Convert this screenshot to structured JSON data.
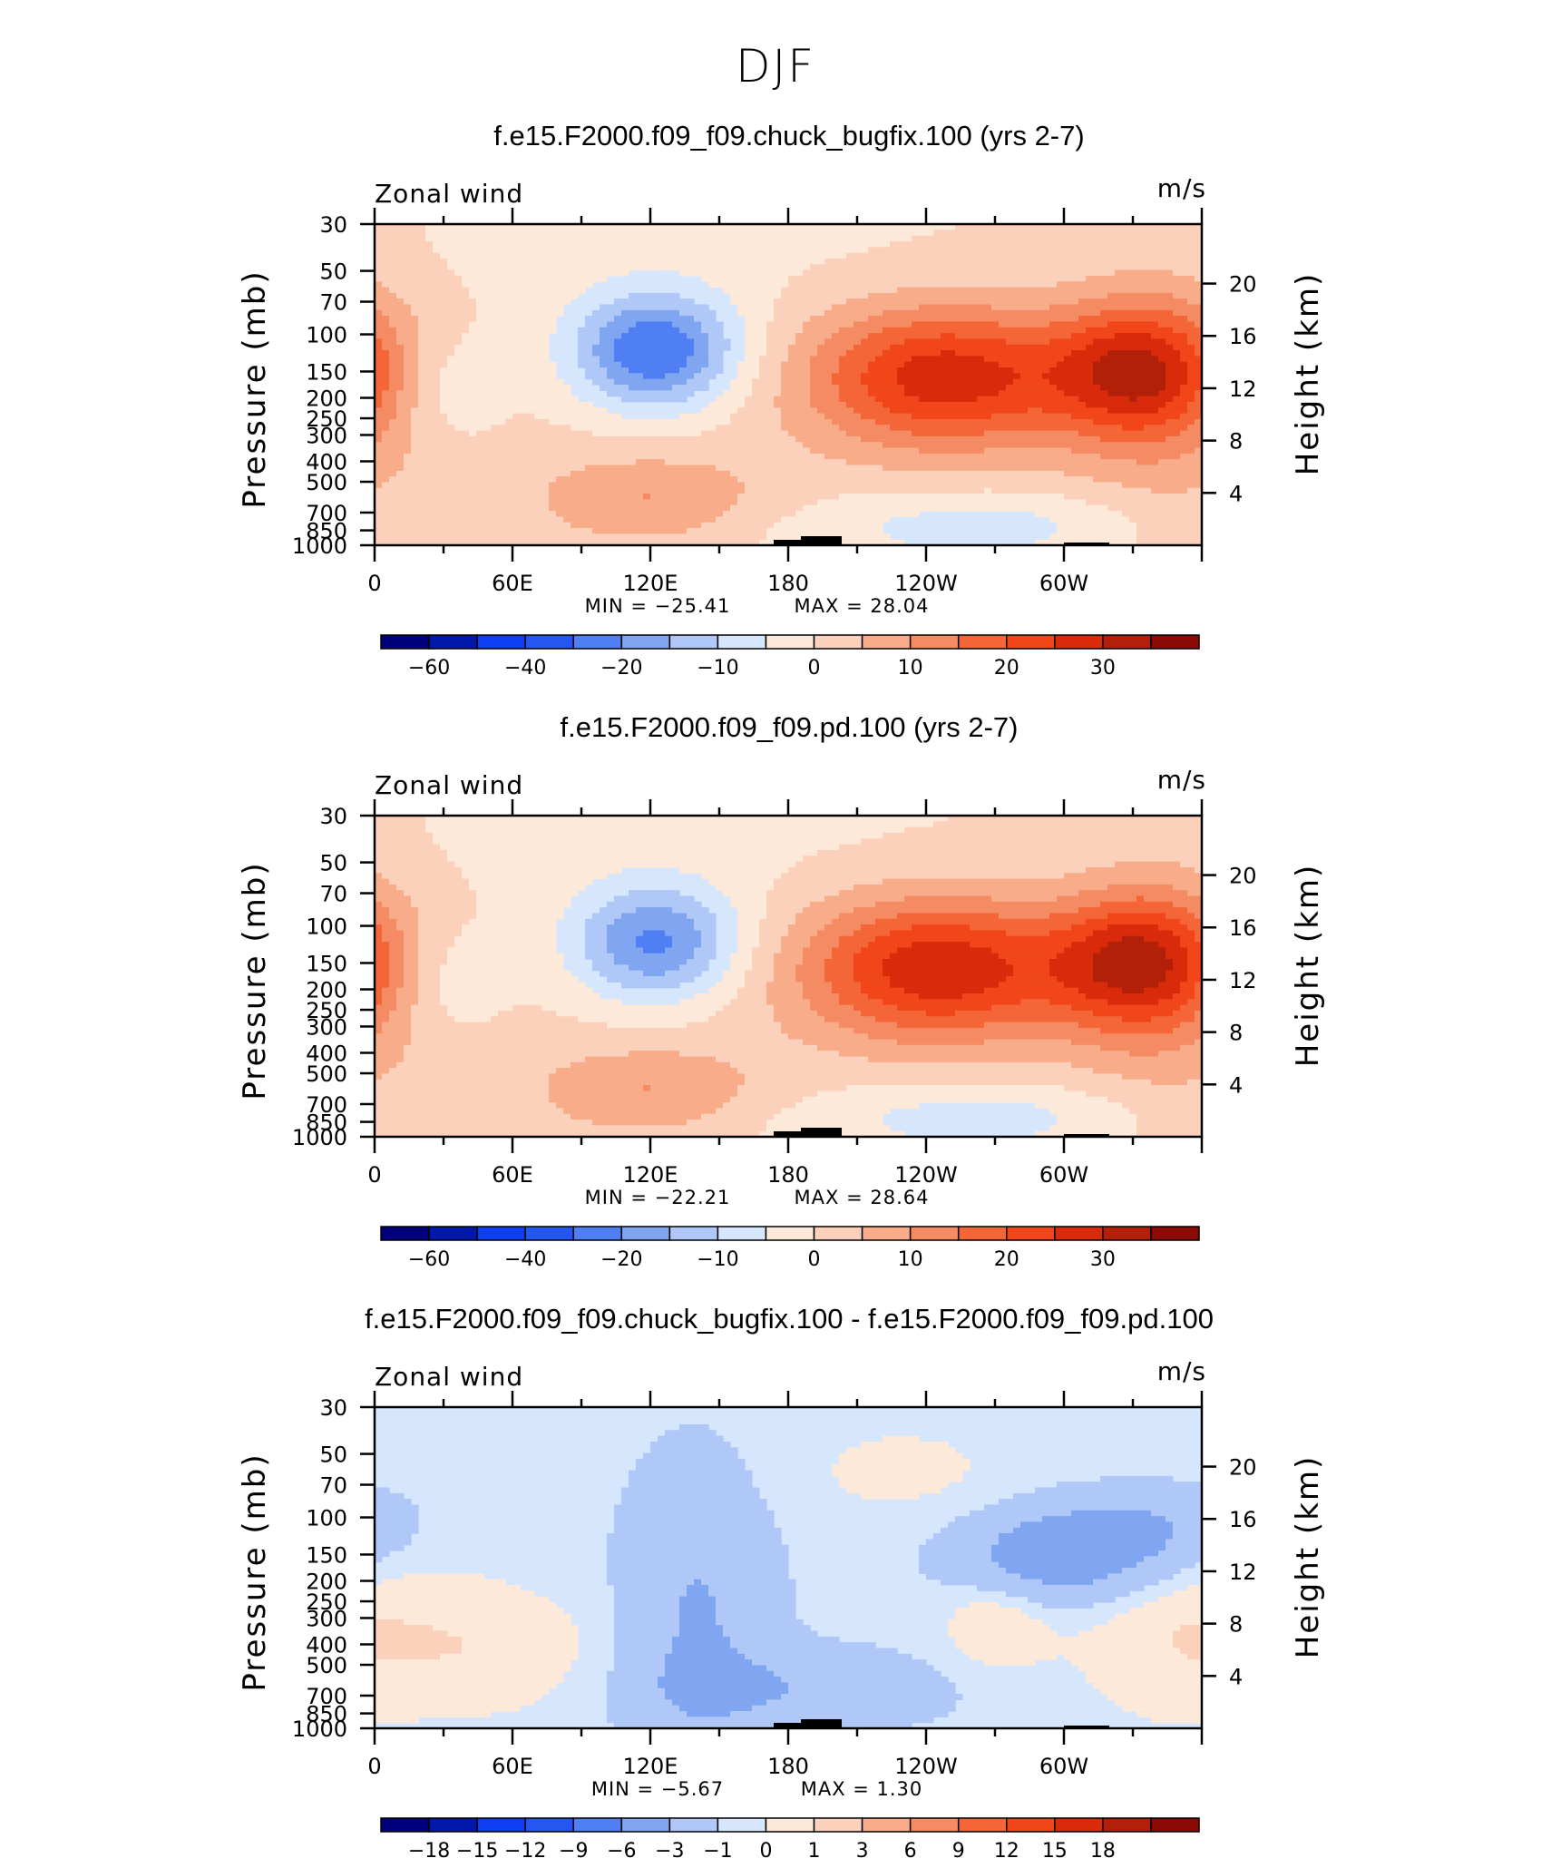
{
  "figure": {
    "title": "DJF",
    "colors": {
      "blues": [
        "#00007a",
        "#0019a8",
        "#0d3ff0",
        "#2457f0",
        "#4f7ff2",
        "#80a6f2",
        "#b0c8f7",
        "#d6e6fd"
      ],
      "reds": [
        "#fde9d9",
        "#fcd1bb",
        "#f8ac8a",
        "#f58b62",
        "#f46638",
        "#f1451a",
        "#da2a0c",
        "#b2200a",
        "#8a0b04"
      ],
      "background": "#d6e6fd",
      "terrain": "#000000"
    }
  },
  "chart_data": [
    {
      "type": "heatmap",
      "title": "f.e15.F2000.f09_f09.chuck_bugfix.100 (yrs 2-7)",
      "variable": "Zonal wind",
      "units": "m/s",
      "ylabel": "Pressure (mb)",
      "ylabel_right": "Height (km)",
      "x_ticks": [
        "0",
        "60E",
        "120E",
        "180",
        "120W",
        "60W"
      ],
      "y_ticks": [
        "30",
        "50",
        "70",
        "100",
        "150",
        "200",
        "250",
        "300",
        "400",
        "500",
        "700",
        "850",
        "1000"
      ],
      "y_ticks_right": [
        "20",
        "16",
        "12",
        "8",
        "4"
      ],
      "min_label": "MIN = −25.41",
      "max_label": "MAX = 28.04",
      "min": -25.41,
      "max": 28.04,
      "colorbar_labels": [
        "−60",
        "−40",
        "−20",
        "−10",
        "0",
        "10",
        "20",
        "30"
      ],
      "colorbar_levels": [
        -70,
        -60,
        -50,
        -40,
        -30,
        -20,
        -15,
        -10,
        -5,
        0,
        5,
        10,
        15,
        20,
        25,
        30,
        35
      ],
      "features": [
        {
          "name": "westerly jet west Pacific",
          "lon": 250,
          "p": 150,
          "max": 28
        },
        {
          "name": "westerly jet Atlantic",
          "lon": 330,
          "p": 150,
          "max": 25
        },
        {
          "name": "easterly core",
          "lon": 120,
          "p": 120,
          "min": -25
        },
        {
          "name": "lower westerlies",
          "lon": 120,
          "p": 600,
          "max": 10
        }
      ]
    },
    {
      "type": "heatmap",
      "title": "f.e15.F2000.f09_f09.pd.100 (yrs 2-7)",
      "variable": "Zonal wind",
      "units": "m/s",
      "ylabel": "Pressure (mb)",
      "ylabel_right": "Height (km)",
      "x_ticks": [
        "0",
        "60E",
        "120E",
        "180",
        "120W",
        "60W"
      ],
      "y_ticks": [
        "30",
        "50",
        "70",
        "100",
        "150",
        "200",
        "250",
        "300",
        "400",
        "500",
        "700",
        "850",
        "1000"
      ],
      "y_ticks_right": [
        "20",
        "16",
        "12",
        "8",
        "4"
      ],
      "min_label": "MIN = −22.21",
      "max_label": "MAX = 28.64",
      "min": -22.21,
      "max": 28.64,
      "colorbar_labels": [
        "−60",
        "−40",
        "−20",
        "−10",
        "0",
        "10",
        "20",
        "30"
      ],
      "colorbar_levels": [
        -70,
        -60,
        -50,
        -40,
        -30,
        -20,
        -15,
        -10,
        -5,
        0,
        5,
        10,
        15,
        20,
        25,
        30,
        35
      ],
      "features": [
        {
          "name": "westerly jet west Pacific",
          "lon": 245,
          "p": 150,
          "max": 28
        },
        {
          "name": "westerly jet Atlantic",
          "lon": 330,
          "p": 150,
          "max": 25
        },
        {
          "name": "easterly core",
          "lon": 125,
          "p": 120,
          "min": -22
        },
        {
          "name": "lower westerlies",
          "lon": 120,
          "p": 600,
          "max": 10
        }
      ]
    },
    {
      "type": "heatmap",
      "title": "f.e15.F2000.f09_f09.chuck_bugfix.100 - f.e15.F2000.f09_f09.pd.100",
      "variable": "Zonal wind",
      "units": "m/s",
      "ylabel": "Pressure (mb)",
      "ylabel_right": "Height (km)",
      "x_ticks": [
        "0",
        "60E",
        "120E",
        "180",
        "120W",
        "60W"
      ],
      "y_ticks": [
        "30",
        "50",
        "70",
        "100",
        "150",
        "200",
        "250",
        "300",
        "400",
        "500",
        "700",
        "850",
        "1000"
      ],
      "y_ticks_right": [
        "20",
        "16",
        "12",
        "8",
        "4"
      ],
      "min_label": "MIN = −5.67",
      "max_label": "MAX = 1.30",
      "min": -5.67,
      "max": 1.3,
      "colorbar_labels": [
        "−18",
        "−15",
        "−12",
        "−9",
        "−6",
        "−3",
        "−1",
        "0",
        "1",
        "3",
        "6",
        "9",
        "12",
        "15",
        "18"
      ],
      "colorbar_levels": [
        -21,
        -18,
        -15,
        -12,
        -9,
        -6,
        -3,
        -1,
        0,
        1,
        3,
        6,
        9,
        12,
        15,
        18,
        21
      ],
      "features": [
        {
          "name": "negative band east Pacific",
          "lon": 300,
          "p": 150,
          "min": -5.67
        },
        {
          "name": "negative column west Pacific",
          "lon": 140,
          "p": 300,
          "min": -3
        },
        {
          "name": "positive patch",
          "lon": 270,
          "p": 300,
          "max": 1.3
        }
      ]
    }
  ]
}
